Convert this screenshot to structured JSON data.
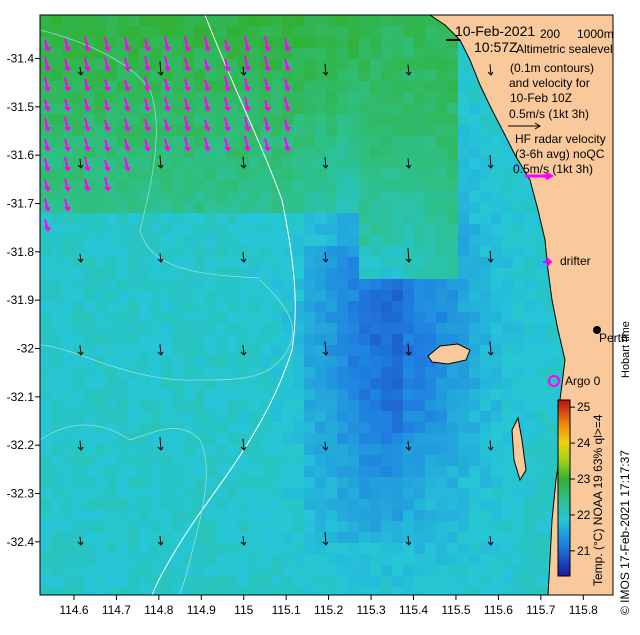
{
  "map": {
    "date": "10-Feb-2021",
    "time": "10:57Z",
    "scale_labels": {
      "a": "200",
      "b": "1000m"
    },
    "legend_altimetry": [
      "Altimetric sealevel",
      "(0.1m contours)",
      "and velocity for",
      "10-Feb 10Z",
      "0.5m/s (1kt 3h)"
    ],
    "legend_radar": [
      "HF radar velocity",
      "(3-6h avg) noQC",
      "0.5m/s (1kt 3h)"
    ],
    "drifter_label": "drifter",
    "argo_label": "Argo 0",
    "city_label": "Perth",
    "hobart_label": "Hobart time",
    "credit": "© IMOS 17-Feb-2021 17:17:37",
    "colorbar": {
      "title": "Temp. (°C) NOAA 19 63% ql>=4",
      "ticks": [
        "25",
        "24",
        "23",
        "22",
        "21"
      ],
      "min": 20.3,
      "max": 25.2
    },
    "axes": {
      "lon_ticks": [
        "114.6",
        "114.7",
        "114.8",
        "114.9",
        "115",
        "115.1",
        "115.2",
        "115.3",
        "115.4",
        "115.5",
        "115.6",
        "115.7",
        "115.8"
      ],
      "lat_ticks": [
        "-31.4",
        "-31.5",
        "-31.6",
        "-31.7",
        "-31.8",
        "-31.9",
        "-32",
        "-32.1",
        "-32.2",
        "-32.3",
        "-32.4"
      ],
      "lon_range": [
        114.52,
        115.87
      ],
      "lat_range": [
        -32.51,
        -31.31
      ]
    },
    "colors": {
      "land": "#f9c99c",
      "hf_arrow": "#ff00ff",
      "contour": "#ffffff",
      "argo": "#ff00ff"
    }
  }
}
